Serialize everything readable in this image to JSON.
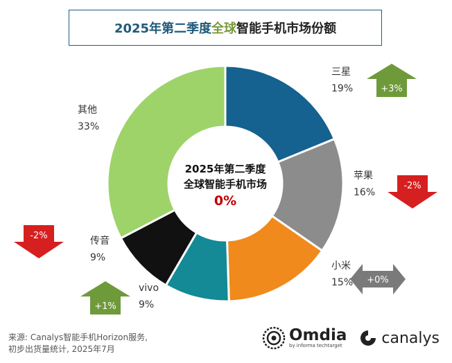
{
  "title": {
    "prefix": "2025年第二季度",
    "highlight": "全球",
    "suffix": "智能手机市场份额",
    "prefix_color": "#1f5a7a",
    "highlight_color": "#7a9a3a",
    "suffix_color": "#222222"
  },
  "center": {
    "line1": "2025年第二季度",
    "line2": "全球智能手机市场",
    "value": "0%"
  },
  "chart_data": {
    "type": "pie",
    "title": "2025年第二季度全球智能手机市场份额",
    "unit": "%",
    "series": [
      {
        "name": "三星",
        "value": 19,
        "label": "19%",
        "change": "+3%",
        "change_direction": "up",
        "color": "#15618f"
      },
      {
        "name": "苹果",
        "value": 16,
        "label": "16%",
        "change": "-2%",
        "change_direction": "down",
        "color": "#8c8c8c"
      },
      {
        "name": "小米",
        "value": 15,
        "label": "15%",
        "change": "+0%",
        "change_direction": "flat",
        "color": "#f08a1c"
      },
      {
        "name": "vivo",
        "value": 9,
        "label": "9%",
        "change": "+1%",
        "change_direction": "up",
        "color": "#138a96"
      },
      {
        "name": "传音",
        "value": 9,
        "label": "9%",
        "change": "-2%",
        "change_direction": "down",
        "color": "#111111"
      },
      {
        "name": "其他",
        "value": 33,
        "label": "33%",
        "change": null,
        "change_direction": null,
        "color": "#9ed36a"
      }
    ]
  },
  "arrow_colors": {
    "up": "#6f9a3a",
    "down": "#d61f1f",
    "flat": "#7a7a7a"
  },
  "source": {
    "line1": "来源: Canalys智能手机Horizon服务,",
    "line2": "初步出货量统计, 2025年7月"
  },
  "logos": {
    "omdia": "Omdia",
    "omdia_sub": "by informa techtarget",
    "canalys": "canalys"
  }
}
